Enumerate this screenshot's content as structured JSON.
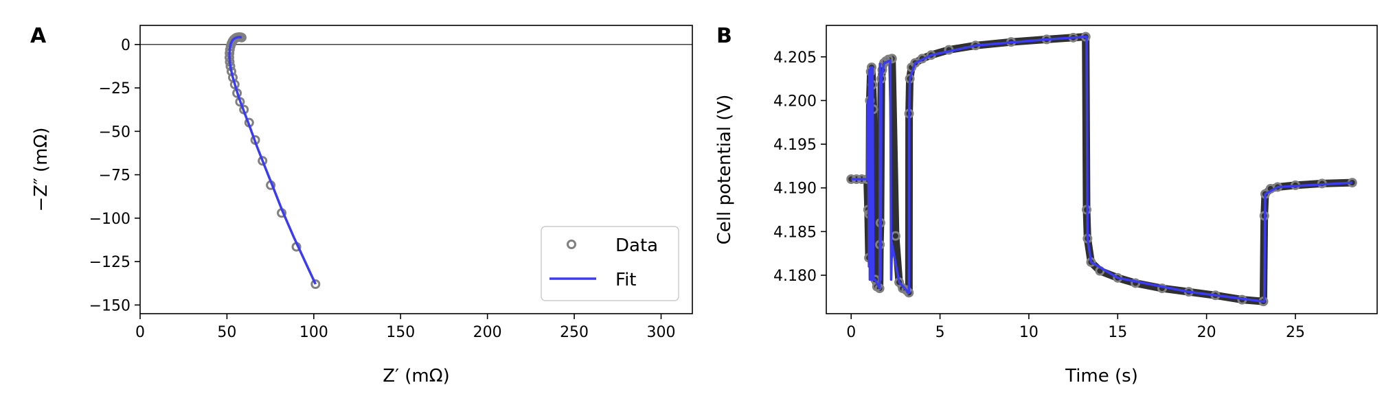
{
  "colors": {
    "data_marker": "#808080",
    "fit": "#3b3bf0",
    "data_dark": "#1a1a1a"
  },
  "chart_data": [
    {
      "panel_label": "A",
      "type": "scatter",
      "xlabel": "Z′ (mΩ)",
      "ylabel": "−Z″ (mΩ)",
      "xlim": [
        0,
        318
      ],
      "ylim": [
        -155,
        11
      ],
      "xticks": [
        0,
        50,
        100,
        150,
        200,
        250,
        300
      ],
      "yticks": [
        0,
        -25,
        -50,
        -75,
        -100,
        -125,
        -150
      ],
      "xtick_labels": [
        "0",
        "50",
        "100",
        "150",
        "200",
        "250",
        "300"
      ],
      "ytick_labels": [
        "0",
        "−25",
        "−50",
        "−75",
        "−100",
        "−125",
        "−150"
      ],
      "reference_line_y": 0,
      "legend": {
        "placement": "lower-right",
        "entries": [
          "Data",
          "Fit"
        ]
      },
      "series": [
        {
          "name": "Data",
          "kind": "markers",
          "x": [
            58.5,
            58.0,
            57.2,
            56.3,
            55.5,
            54.7,
            53.9,
            53.2,
            52.6,
            52.1,
            51.7,
            51.5,
            51.4,
            51.6,
            52.0,
            52.6,
            53.4,
            54.5,
            55.8,
            57.5,
            59.8,
            62.8,
            66.3,
            70.5,
            75.2,
            81.5,
            90.0,
            101.0
          ],
          "y": [
            4.0,
            4.2,
            4.3,
            4.2,
            4.0,
            3.5,
            2.8,
            1.8,
            0.5,
            -1.0,
            -3.0,
            -5.0,
            -7.5,
            -10.0,
            -12.5,
            -15.5,
            -19.0,
            -23.0,
            -28.0,
            -33.0,
            -37.5,
            -45.0,
            -55.0,
            -67.0,
            -81.0,
            -97.0,
            -116.5,
            -138.0
          ]
        },
        {
          "name": "Fit",
          "kind": "line",
          "x": [
            58.5,
            57.5,
            56.0,
            54.5,
            53.2,
            52.2,
            51.6,
            51.4,
            51.6,
            52.2,
            53.4,
            55.0,
            57.0,
            59.8,
            63.0,
            67.0,
            71.5,
            76.5,
            82.0,
            88.5,
            95.0,
            101.0
          ],
          "y": [
            4.0,
            4.3,
            4.2,
            3.6,
            2.5,
            0.5,
            -2.5,
            -6.0,
            -10.0,
            -14.0,
            -19.0,
            -24.5,
            -31.0,
            -38.5,
            -47.0,
            -58.0,
            -69.5,
            -82.0,
            -96.0,
            -111.0,
            -125.0,
            -138.0
          ]
        }
      ]
    },
    {
      "panel_label": "B",
      "type": "line",
      "xlabel": "Time (s)",
      "ylabel": "Cell potential (V)",
      "xlim": [
        -1.4,
        29.6
      ],
      "ylim": [
        4.1756,
        4.2086
      ],
      "xticks": [
        0,
        5,
        10,
        15,
        20,
        25
      ],
      "yticks": [
        4.18,
        4.185,
        4.19,
        4.195,
        4.2,
        4.205
      ],
      "xtick_labels": [
        "0",
        "5",
        "10",
        "15",
        "20",
        "25"
      ],
      "ytick_labels": [
        "4.180",
        "4.185",
        "4.190",
        "4.195",
        "4.200",
        "4.205"
      ],
      "series": [
        {
          "name": "Data",
          "kind": "markers+thick",
          "x": [
            0.0,
            0.3,
            0.6,
            0.9,
            0.95,
            1.0,
            1.02,
            1.05,
            1.1,
            1.15,
            1.2,
            1.25,
            1.35,
            1.45,
            1.6,
            1.62,
            1.65,
            1.7,
            1.75,
            1.85,
            1.95,
            2.1,
            2.3,
            2.5,
            2.7,
            2.9,
            3.1,
            3.25,
            3.26,
            3.3,
            3.4,
            3.6,
            4.0,
            4.5,
            5.5,
            7.0,
            9.0,
            11.0,
            12.5,
            13.2,
            13.25,
            13.3,
            13.5,
            14.0,
            15.0,
            16.0,
            17.5,
            19.0,
            20.5,
            22.0,
            23.2,
            23.25,
            23.3,
            23.6,
            24.0,
            25.0,
            26.5,
            28.2
          ],
          "y": [
            4.191,
            4.191,
            4.191,
            4.191,
            4.1875,
            4.182,
            4.187,
            4.2,
            4.2033,
            4.2038,
            4.2018,
            4.199,
            4.1795,
            4.1787,
            4.1785,
            4.1835,
            4.186,
            4.2025,
            4.2035,
            4.2043,
            4.2045,
            4.2047,
            4.2048,
            4.1845,
            4.1792,
            4.1785,
            4.1783,
            4.178,
            4.1985,
            4.2025,
            4.2038,
            4.2043,
            4.2048,
            4.2052,
            4.2058,
            4.2063,
            4.2067,
            4.207,
            4.2072,
            4.2073,
            4.1875,
            4.1842,
            4.1815,
            4.1805,
            4.1797,
            4.1791,
            4.1785,
            4.1781,
            4.1777,
            4.1772,
            4.177,
            4.1868,
            4.1893,
            4.1899,
            4.1901,
            4.1903,
            4.1905,
            4.1906
          ]
        },
        {
          "name": "Fit",
          "kind": "line",
          "x": [
            0.0,
            0.9,
            0.95,
            1.0,
            1.02,
            1.05,
            1.1,
            1.15,
            1.2,
            1.25,
            1.35,
            1.6,
            1.62,
            1.65,
            1.7,
            1.85,
            2.1,
            2.2,
            2.25,
            2.3,
            2.7,
            3.1,
            3.2,
            3.25,
            3.26,
            3.3,
            3.6,
            4.5,
            7.0,
            11.0,
            13.2,
            13.25,
            13.3,
            13.5,
            15.0,
            19.0,
            23.2,
            23.25,
            23.3,
            24.0,
            28.2
          ],
          "y": [
            4.191,
            4.191,
            4.2,
            4.181,
            4.2035,
            4.1795,
            4.2038,
            4.1795,
            4.2038,
            4.1795,
            4.1795,
            4.1785,
            4.2042,
            4.1795,
            4.2025,
            4.2043,
            4.2045,
            4.2046,
            4.1795,
            4.1835,
            4.1792,
            4.1783,
            4.178,
            4.178,
            4.1985,
            4.2025,
            4.2043,
            4.2052,
            4.2063,
            4.207,
            4.2073,
            4.2073,
            4.1842,
            4.1815,
            4.1797,
            4.1781,
            4.177,
            4.177,
            4.1893,
            4.1901,
            4.1906
          ]
        }
      ]
    }
  ]
}
